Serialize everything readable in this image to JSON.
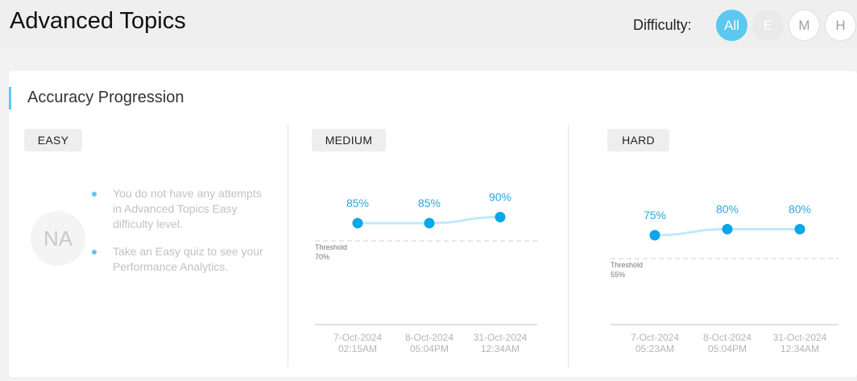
{
  "header": {
    "title": "Advanced Topics",
    "difficulty_label": "Difficulty:",
    "buttons": [
      {
        "label": "All",
        "state": "active"
      },
      {
        "label": "E",
        "state": "disabled"
      },
      {
        "label": "M",
        "state": "normal"
      },
      {
        "label": "H",
        "state": "normal"
      }
    ]
  },
  "card": {
    "title": "Accuracy Progression"
  },
  "easy": {
    "label": "EASY",
    "na": "NA",
    "messages": [
      "You do not have any attempts in Advanced Topics Easy difficulty level.",
      "Take an Easy quiz to see your Performance Analytics."
    ]
  },
  "medium": {
    "label": "MEDIUM"
  },
  "hard": {
    "label": "HARD"
  },
  "colors": {
    "accent": "#5bc8f0",
    "point": "#0aa6e8",
    "line": "#bfe9f9"
  },
  "chart_data": [
    {
      "type": "line",
      "name": "MEDIUM",
      "x_date": [
        "7-Oct-2024",
        "8-Oct-2024",
        "31-Oct-2024"
      ],
      "x_time": [
        "02:15AM",
        "05:04PM",
        "12:34AM"
      ],
      "labels": [
        "85%",
        "85%",
        "90%"
      ],
      "values": [
        85,
        85,
        90
      ],
      "threshold": 70,
      "threshold_label": "Threshold",
      "threshold_value_label": "70%"
    },
    {
      "type": "line",
      "name": "HARD",
      "x_date": [
        "7-Oct-2024",
        "8-Oct-2024",
        "31-Oct-2024"
      ],
      "x_time": [
        "05:23AM",
        "05:04PM",
        "12:34AM"
      ],
      "labels": [
        "75%",
        "80%",
        "80%"
      ],
      "values": [
        75,
        80,
        80
      ],
      "threshold": 55,
      "threshold_label": "Threshold",
      "threshold_value_label": "55%"
    }
  ]
}
